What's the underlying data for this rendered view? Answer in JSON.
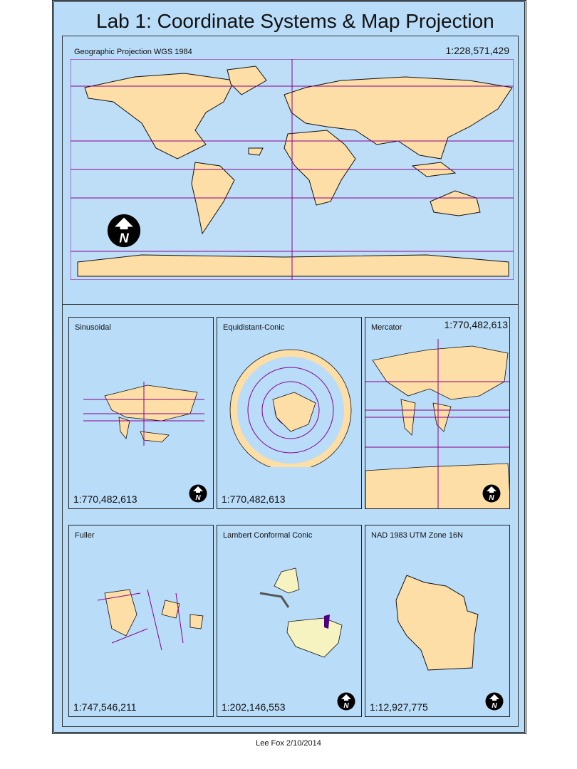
{
  "title": "Lab 1: Coordinate Systems & Map Projection",
  "main_map": {
    "label": "Geographic Projection WGS 1984",
    "scale": "1:228,571,429"
  },
  "panels": [
    {
      "label": "Sinusoidal",
      "scale": "1:770,482,613"
    },
    {
      "label": "Equidistant-Conic",
      "scale": "1:770,482,613"
    },
    {
      "label": "Mercator",
      "scale": "1:770,482,613"
    },
    {
      "label": "Fuller",
      "scale": "1:747,546,211"
    },
    {
      "label": "Lambert Conformal Conic",
      "scale": "1:202,146,553"
    },
    {
      "label": "NAD 1983 UTM Zone 16N",
      "scale": "1:12,927,775"
    }
  ],
  "footer": "Lee Fox 2/10/2014",
  "colors": {
    "ocean": "#b9dcf8",
    "land": "#fddea6",
    "graticule": "#8b008b",
    "border": "#222222"
  },
  "icons": [
    "north-arrow-icon"
  ]
}
